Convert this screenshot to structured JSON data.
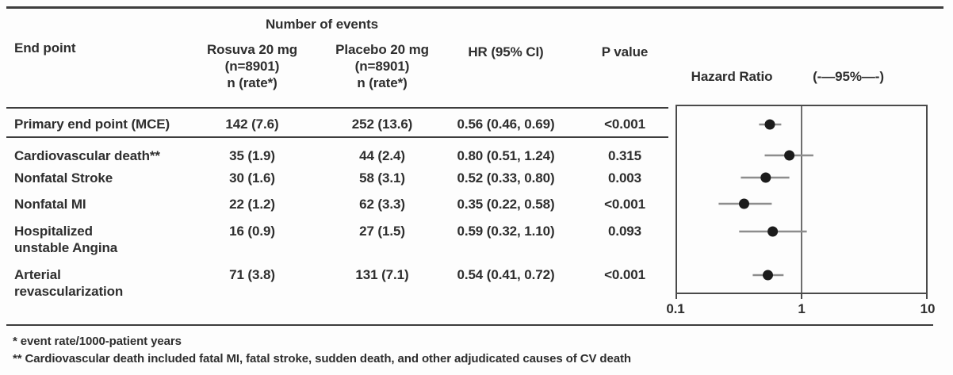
{
  "header": {
    "group": "Number of events",
    "end_point": "End point",
    "rosuva": "Rosuva 20 mg\n(n=8901)\nn (rate*)",
    "placebo": "Placebo 20 mg\n(n=8901)\nn (rate*)",
    "hr": "HR (95% CI)",
    "p": "P value",
    "hazard_ratio": "Hazard Ratio",
    "ci_label": "(-—95%—-)"
  },
  "table": {
    "rows": [
      {
        "end_point": "Primary end point (MCE)",
        "rosuva": "142 (7.6)",
        "placebo": "252 (13.6)",
        "hr": "0.56 (0.46, 0.69)",
        "p": "<0.001"
      },
      {
        "end_point": "Cardiovascular death**",
        "rosuva": "35 (1.9)",
        "placebo": "44 (2.4)",
        "hr": "0.80 (0.51, 1.24)",
        "p": "0.315"
      },
      {
        "end_point": "Nonfatal Stroke",
        "rosuva": "30 (1.6)",
        "placebo": "58 (3.1)",
        "hr": "0.52 (0.33, 0.80)",
        "p": "0.003"
      },
      {
        "end_point": "Nonfatal MI",
        "rosuva": "22 (1.2)",
        "placebo": "62 (3.3)",
        "hr": "0.35 (0.22, 0.58)",
        "p": "<0.001"
      },
      {
        "end_point": "Hospitalized\nunstable Angina",
        "rosuva": "16 (0.9)",
        "placebo": "27 (1.5)",
        "hr": "0.59 (0.32, 1.10)",
        "p": "0.093"
      },
      {
        "end_point": "Arterial\nrevascularization",
        "rosuva": "71 (3.8)",
        "placebo": "131 (7.1)",
        "hr": "0.54 (0.41, 0.72)",
        "p": "<0.001"
      }
    ]
  },
  "chart_data": {
    "type": "scatter",
    "variant": "forest-plot",
    "title": "Hazard Ratio",
    "ci_header": "(-—95%—-)",
    "x_scale": "log",
    "xlim": [
      0.1,
      10
    ],
    "x_ticks": [
      "0.1",
      "1",
      "10"
    ],
    "x_tick_values": [
      0.1,
      1,
      10
    ],
    "reference_line": 1,
    "points": [
      {
        "label": "Primary end point (MCE)",
        "hr": 0.56,
        "ci": [
          0.46,
          0.69
        ]
      },
      {
        "label": "Cardiovascular death",
        "hr": 0.8,
        "ci": [
          0.51,
          1.24
        ]
      },
      {
        "label": "Nonfatal Stroke",
        "hr": 0.52,
        "ci": [
          0.33,
          0.8
        ]
      },
      {
        "label": "Nonfatal MI",
        "hr": 0.35,
        "ci": [
          0.22,
          0.58
        ]
      },
      {
        "label": "Hospitalized unstable Angina",
        "hr": 0.59,
        "ci": [
          0.32,
          1.1
        ]
      },
      {
        "label": "Arterial revascularization",
        "hr": 0.54,
        "ci": [
          0.41,
          0.72
        ]
      }
    ]
  },
  "footnotes": {
    "f1": "* event rate/1000-patient years",
    "f2": "** Cardiovascular death included fatal MI, fatal stroke, sudden death, and other adjudicated causes of CV death"
  },
  "colors": {
    "text": "#2e2e2e",
    "rule": "#3d3d3d",
    "frame": "#4a4a4a",
    "ci_line": "#8d8d8d",
    "marker": "#1c1c1c"
  }
}
